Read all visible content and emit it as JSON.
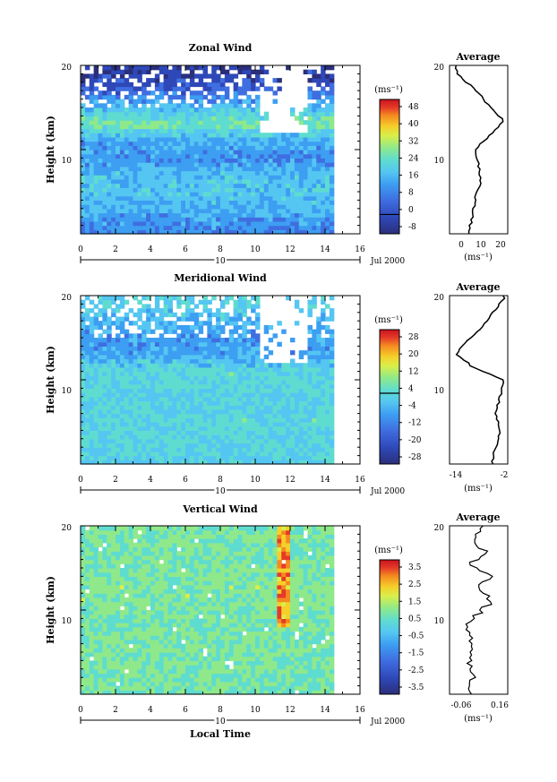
{
  "panels": [
    {
      "title": "Zonal Wind",
      "ylabel": "Height (km)",
      "yticks": [
        "20",
        "10"
      ],
      "xticks": [
        "0",
        "2",
        "4",
        "6",
        "8",
        "10",
        "12",
        "14",
        "16"
      ],
      "date_day": "10",
      "date_month_year": "Jul 2000",
      "cb_unit": "(ms⁻¹)",
      "cb_ticks": [
        "48",
        "40",
        "32",
        "24",
        "16",
        "8",
        "0",
        "-8"
      ],
      "cb_zero_index": 6,
      "avg_title": "Average",
      "avg_xticks": [
        "0",
        "10",
        "20"
      ],
      "avg_xunit": "(ms⁻¹)"
    },
    {
      "title": "Meridional Wind",
      "ylabel": "Height (km)",
      "yticks": [
        "20",
        "10"
      ],
      "xticks": [
        "0",
        "2",
        "4",
        "6",
        "8",
        "10",
        "12",
        "14",
        "16"
      ],
      "date_day": "10",
      "date_month_year": "Jul 2000",
      "cb_unit": "(ms⁻¹)",
      "cb_ticks": [
        "28",
        "20",
        "12",
        "4",
        "-4",
        "-12",
        "-20",
        "-28"
      ],
      "cb_zero_index": 3,
      "avg_title": "Average",
      "avg_xticks": [
        "-14",
        "-2"
      ],
      "avg_xunit": "(ms⁻¹)"
    },
    {
      "title": "Vertical Wind",
      "ylabel": "Height (km)",
      "yticks": [
        "20",
        "10"
      ],
      "xticks": [
        "0",
        "2",
        "4",
        "6",
        "8",
        "10",
        "12",
        "14",
        "16"
      ],
      "date_day": "10",
      "date_month_year": "Jul 2000",
      "xlabel": "Local Time",
      "cb_unit": "(ms⁻¹)",
      "cb_ticks": [
        "3.5",
        "2.5",
        "1.5",
        "0.5",
        "-0.5",
        "-1.5",
        "-2.5",
        "-3.5"
      ],
      "cb_zero_index": -1,
      "avg_title": "Average",
      "avg_xticks": [
        "-0.06",
        "0.16"
      ],
      "avg_xunit": "(ms⁻¹)"
    }
  ],
  "colors": {
    "palette": [
      "#2b2f7a",
      "#2f48b8",
      "#3f6ee0",
      "#3d9ef2",
      "#55c6f2",
      "#5fdcd0",
      "#8fe98a",
      "#d9ef4a",
      "#f5cf2a",
      "#f58a20",
      "#e53a28",
      "#c9141d"
    ]
  },
  "chart_data": [
    {
      "type": "heatmap",
      "title": "Zonal Wind",
      "xlim": [
        0,
        16
      ],
      "ylim": [
        0,
        20
      ],
      "data_until_hour": 14.5,
      "clim": [
        -8,
        52
      ],
      "colorbar_unit": "ms-1",
      "y_km": [
        1,
        3,
        5,
        7,
        9,
        11,
        13,
        15,
        17,
        19
      ],
      "profile_values": [
        8,
        12,
        15,
        14,
        8,
        11,
        22,
        14,
        3,
        -2
      ],
      "average_profile": {
        "height_km": [
          0.5,
          2,
          4,
          6,
          8,
          10,
          12,
          13.5,
          15,
          17,
          18.5,
          19.5
        ],
        "value": [
          4,
          6,
          7,
          10,
          9,
          7,
          16,
          22,
          15,
          8,
          0,
          -3
        ],
        "xlim": [
          -6,
          24
        ]
      }
    },
    {
      "type": "heatmap",
      "title": "Meridional Wind",
      "xlim": [
        0,
        16
      ],
      "ylim": [
        0,
        20
      ],
      "data_until_hour": 14.5,
      "clim": [
        -32,
        32
      ],
      "colorbar_unit": "ms-1",
      "y_km": [
        1,
        3,
        5,
        7,
        9,
        11,
        13,
        15,
        17,
        19
      ],
      "profile_values": [
        -6,
        -5,
        -4,
        -6,
        -5,
        -4,
        -12,
        -14,
        -10,
        -6
      ],
      "average_profile": {
        "height_km": [
          0.5,
          2,
          4,
          6,
          8,
          10,
          11.5,
          13,
          14.5,
          16,
          18,
          19.5
        ],
        "value": [
          -5,
          -4,
          -3,
          -4,
          -3,
          -2,
          -10,
          -14,
          -12,
          -8,
          -5,
          -2
        ],
        "xlim": [
          -16,
          -1
        ]
      }
    },
    {
      "type": "heatmap",
      "title": "Vertical Wind",
      "xlabel": "Local Time",
      "xlim": [
        0,
        16
      ],
      "ylim": [
        0,
        20
      ],
      "data_until_hour": 14.5,
      "clim": [
        -4,
        4
      ],
      "colorbar_unit": "ms-1",
      "y_km": [
        1,
        3,
        5,
        7,
        9,
        11,
        13,
        15,
        17,
        19
      ],
      "profile_values": [
        0.0,
        0.1,
        0.0,
        0.1,
        0.0,
        0.2,
        0.2,
        0.1,
        0.0,
        0.1
      ],
      "average_profile": {
        "height_km": [
          0.5,
          2,
          4,
          6,
          8,
          10,
          11,
          12.5,
          14,
          15.5,
          17,
          18.5,
          19.5
        ],
        "value": [
          0.0,
          0.03,
          0.01,
          0.02,
          0.0,
          0.06,
          0.12,
          0.04,
          0.1,
          0.02,
          0.08,
          0.02,
          0.06
        ],
        "xlim": [
          -0.08,
          0.18
        ]
      }
    }
  ]
}
